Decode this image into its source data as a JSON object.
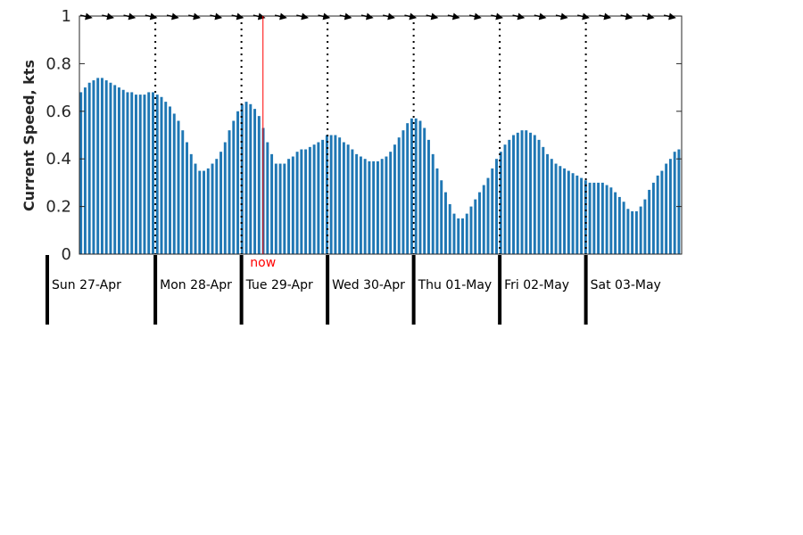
{
  "chart_data": {
    "type": "bar",
    "ylabel": "Current Speed, kts",
    "ylim": [
      0,
      1
    ],
    "yticks": [
      "0",
      "0.2",
      "0.4",
      "0.6",
      "0.8",
      "1"
    ],
    "days": [
      "Sun 27-Apr",
      "Mon 28-Apr",
      "Tue 29-Apr",
      "Wed 30-Apr",
      "Thu 01-May",
      "Fri 02-May",
      "Sat 03-May"
    ],
    "hours_per_day": 24,
    "samples_per_hour": 1,
    "x_start_hour": 18,
    "now_hour": 54,
    "now_label": "now",
    "bar_color": "#1f77b4",
    "now_color": "#ff0000",
    "direction_marks": 28,
    "values": [
      0.68,
      0.7,
      0.72,
      0.73,
      0.74,
      0.74,
      0.73,
      0.72,
      0.71,
      0.7,
      0.69,
      0.68,
      0.68,
      0.67,
      0.67,
      0.67,
      0.68,
      0.68,
      0.67,
      0.66,
      0.64,
      0.62,
      0.59,
      0.56,
      0.52,
      0.47,
      0.42,
      0.38,
      0.35,
      0.35,
      0.36,
      0.38,
      0.4,
      0.43,
      0.47,
      0.52,
      0.56,
      0.6,
      0.63,
      0.64,
      0.63,
      0.61,
      0.58,
      0.53,
      0.47,
      0.42,
      0.38,
      0.38,
      0.38,
      0.4,
      0.41,
      0.43,
      0.44,
      0.44,
      0.45,
      0.46,
      0.47,
      0.48,
      0.5,
      0.5,
      0.5,
      0.49,
      0.47,
      0.46,
      0.44,
      0.42,
      0.41,
      0.4,
      0.39,
      0.39,
      0.39,
      0.4,
      0.41,
      0.43,
      0.46,
      0.49,
      0.52,
      0.55,
      0.57,
      0.57,
      0.56,
      0.53,
      0.48,
      0.42,
      0.36,
      0.31,
      0.26,
      0.21,
      0.17,
      0.15,
      0.15,
      0.17,
      0.2,
      0.23,
      0.26,
      0.29,
      0.32,
      0.36,
      0.4,
      0.43,
      0.46,
      0.48,
      0.5,
      0.51,
      0.52,
      0.52,
      0.51,
      0.5,
      0.48,
      0.45,
      0.42,
      0.4,
      0.38,
      0.37,
      0.36,
      0.35,
      0.34,
      0.33,
      0.32,
      0.31,
      0.3,
      0.3,
      0.3,
      0.3,
      0.29,
      0.28,
      0.26,
      0.24,
      0.22,
      0.19,
      0.18,
      0.18,
      0.2,
      0.23,
      0.27,
      0.3,
      0.33,
      0.35,
      0.38,
      0.4,
      0.43,
      0.44
    ]
  }
}
